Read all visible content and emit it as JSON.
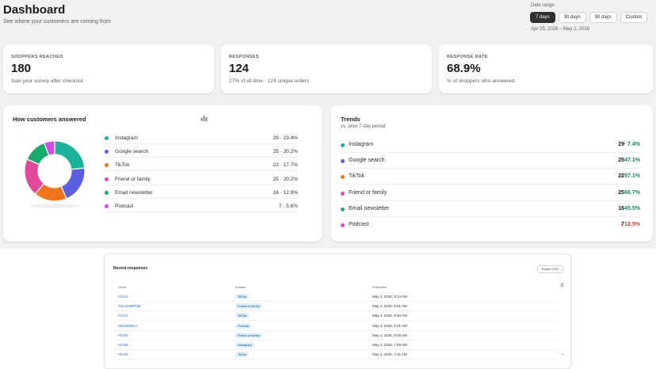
{
  "header": {
    "title": "Dashboard",
    "subtitle": "See where your customers are coming from"
  },
  "date_range": {
    "label": "Date range",
    "options": [
      "7 days",
      "30 days",
      "90 days",
      "Custom"
    ],
    "selected": "7 days",
    "range_text": "Apr 25, 2026 – May 2, 2026"
  },
  "kpis": [
    {
      "label": "SHOPPERS REACHED",
      "value": "180",
      "note": "Saw your survey after checkout"
    },
    {
      "label": "RESPONSES",
      "value": "124",
      "note": "27% of all-time · 124 unique orders"
    },
    {
      "label": "RESPONSE RATE",
      "value": "68.9%",
      "note": "% of shoppers who answered"
    }
  ],
  "answers": {
    "title": "How customers answered",
    "chart_icon": "bar-chart-icon",
    "chart_data": {
      "type": "pie",
      "categories": [
        "Instagram",
        "Google search",
        "TikTok",
        "Friend or family",
        "Email newsletter",
        "Podcast"
      ],
      "values": [
        29,
        25,
        22,
        25,
        16,
        7
      ],
      "colors": [
        "#19b29a",
        "#5b5fe0",
        "#f2751c",
        "#e7479a",
        "#14ad6a",
        "#d24be8"
      ]
    },
    "items": [
      {
        "label": "Instagram",
        "value": "29 · 23.4%",
        "color": "#19b29a"
      },
      {
        "label": "Google search",
        "value": "25 · 20.2%",
        "color": "#5b5fe0"
      },
      {
        "label": "TikTok",
        "value": "22 · 17.7%",
        "color": "#f2751c"
      },
      {
        "label": "Friend or family",
        "value": "25 · 20.2%",
        "color": "#e7479a"
      },
      {
        "label": "Email newsletter",
        "value": "16 · 12.9%",
        "color": "#14ad6a"
      },
      {
        "label": "Podcast",
        "value": "7 · 5.6%",
        "color": "#d24be8"
      }
    ]
  },
  "trends": {
    "title": "Trends",
    "subtitle": "vs. prior 7-day period",
    "items": [
      {
        "label": "Instagram",
        "count": "29",
        "change": "↑ 7.4%",
        "direction": "up",
        "color": "#19b29a"
      },
      {
        "label": "Google search",
        "count": "25",
        "change": "↑ 47.1%",
        "direction": "up",
        "color": "#5b5fe0"
      },
      {
        "label": "TikTok",
        "count": "22",
        "change": "↑ 57.1%",
        "direction": "up",
        "color": "#f2751c"
      },
      {
        "label": "Friend or family",
        "count": "25",
        "change": "↑ 66.7%",
        "direction": "up",
        "color": "#e7479a"
      },
      {
        "label": "Email newsletter",
        "count": "16",
        "change": "↑ 45.5%",
        "direction": "up",
        "color": "#14ad6a"
      },
      {
        "label": "Podcast",
        "count": "7",
        "change": "↓ 12.5%",
        "direction": "down",
        "color": "#d24be8"
      }
    ]
  },
  "recent": {
    "title": "Recent responses",
    "export_label": "Export CSV",
    "columns": [
      "Order",
      "Answer",
      "Submitted"
    ],
    "rows": [
      {
        "order": "#1441",
        "answer": "TikTok",
        "submitted": "May 2, 2026, 9:14 AM"
      },
      {
        "order": "#GL2049PNM",
        "answer": "Friend or family",
        "submitted": "May 2, 2026, 8:51 AM"
      },
      {
        "order": "#1441",
        "answer": "TikTok",
        "submitted": "May 2, 2026, 8:40 AM"
      },
      {
        "order": "#EGB59GU",
        "answer": "Podcast",
        "submitted": "May 2, 2026, 8:21 AM"
      },
      {
        "order": "#1439",
        "answer": "Friend or family",
        "submitted": "May 2, 2026, 8:05 AM"
      },
      {
        "order": "#1438",
        "answer": "Instagram",
        "submitted": "May 2, 2026, 7:58 AM"
      },
      {
        "order": "#1436",
        "answer": "TikTok",
        "submitted": "May 2, 2026, 7:11 AM"
      }
    ]
  }
}
